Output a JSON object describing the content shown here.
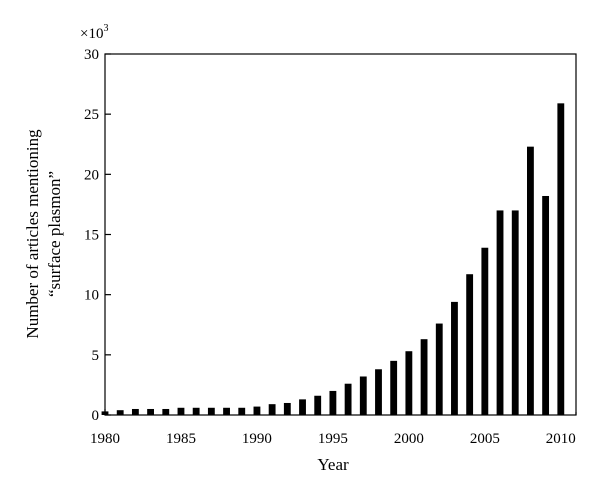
{
  "chart_data": {
    "type": "bar",
    "title": "",
    "xlabel": "Year",
    "ylabel_lines": [
      "Number of articles mentioning",
      "“surface plasmon”"
    ],
    "y_multiplier": "×10",
    "y_multiplier_exp": "3",
    "xlim": [
      1980,
      2011
    ],
    "ylim": [
      0,
      30
    ],
    "xticks": [
      1980,
      1985,
      1990,
      1995,
      2000,
      2005,
      2010
    ],
    "yticks": [
      0,
      5,
      10,
      15,
      20,
      25,
      30
    ],
    "grid": false,
    "bar_color": "#000000",
    "x": [
      1980,
      1981,
      1982,
      1983,
      1984,
      1985,
      1986,
      1987,
      1988,
      1989,
      1990,
      1991,
      1992,
      1993,
      1994,
      1995,
      1996,
      1997,
      1998,
      1999,
      2000,
      2001,
      2002,
      2003,
      2004,
      2005,
      2006,
      2007,
      2008,
      2009,
      2010
    ],
    "values": [
      0.3,
      0.4,
      0.5,
      0.5,
      0.5,
      0.6,
      0.6,
      0.6,
      0.6,
      0.6,
      0.7,
      0.9,
      1.0,
      1.3,
      1.6,
      2.0,
      2.6,
      3.2,
      3.8,
      4.5,
      5.3,
      6.3,
      7.6,
      9.4,
      11.7,
      13.9,
      17.0,
      17.0,
      22.3,
      18.2,
      25.9
    ]
  }
}
